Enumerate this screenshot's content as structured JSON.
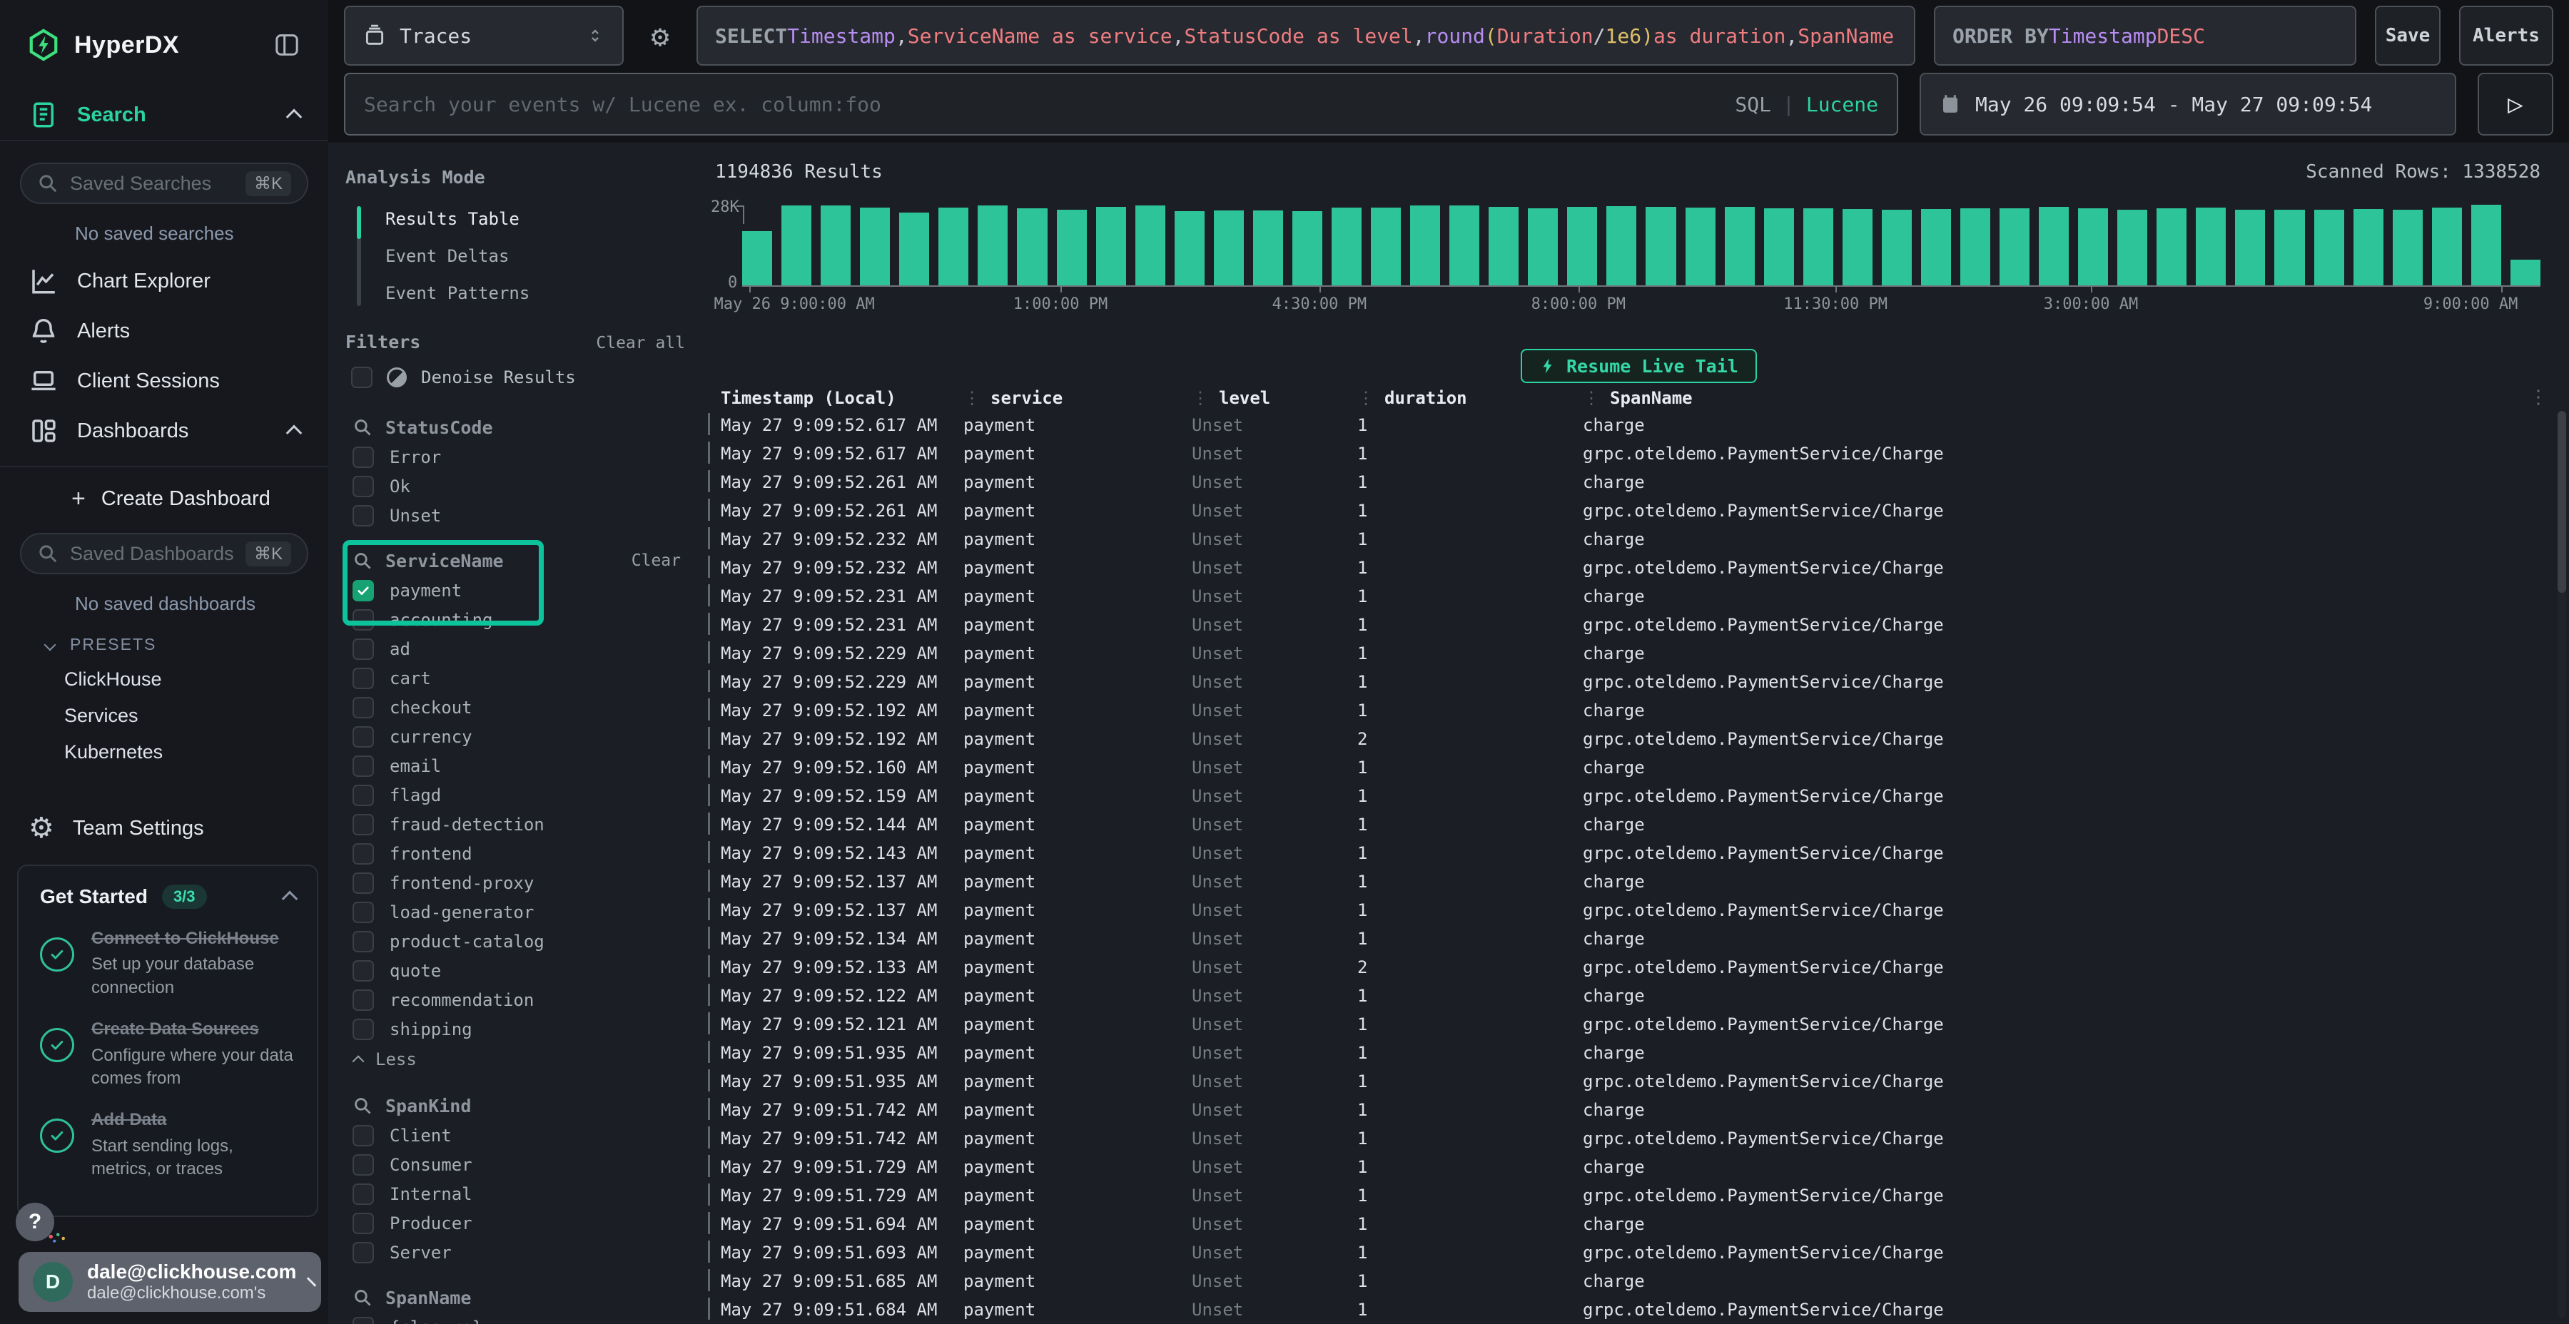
{
  "brand": {
    "name": "HyperDX"
  },
  "topbar": {
    "source": {
      "label": "Traces"
    },
    "sql_tokens": [
      [
        "kw",
        "SELECT "
      ],
      [
        "purple",
        "Timestamp"
      ],
      [
        "plain",
        ", "
      ],
      [
        "salmon",
        "ServiceName as service"
      ],
      [
        "plain",
        ", "
      ],
      [
        "salmon",
        "StatusCode as level"
      ],
      [
        "plain",
        ", "
      ],
      [
        "purple",
        "round"
      ],
      [
        "yellow",
        "("
      ],
      [
        "salmon",
        "Duration"
      ],
      [
        "plain",
        " / "
      ],
      [
        "yellow",
        "1e6"
      ],
      [
        "yellow",
        ")"
      ],
      [
        "salmon",
        " as duration"
      ],
      [
        "plain",
        ", "
      ],
      [
        "salmon",
        "SpanName"
      ]
    ],
    "order_tokens": [
      [
        "kw",
        "ORDER BY "
      ],
      [
        "purple",
        "Timestamp"
      ],
      [
        "salmon",
        " DESC"
      ]
    ],
    "save_label": "Save",
    "alerts_label": "Alerts",
    "search_placeholder": "Search your events w/ Lucene ex. column:foo",
    "sql_label": "SQL",
    "pipe": "|",
    "lucene_label": "Lucene",
    "date_range": "May 26 09:09:54 - May 27 09:09:54",
    "run_glyph": "▷"
  },
  "sidebar": {
    "search_nav": "Search",
    "saved_searches_placeholder": "Saved Searches",
    "shortcut": "⌘K",
    "no_saved_searches": "No saved searches",
    "nav": [
      {
        "icon": "chart",
        "label": "Chart Explorer"
      },
      {
        "icon": "bell",
        "label": "Alerts"
      },
      {
        "icon": "laptop",
        "label": "Client Sessions"
      },
      {
        "icon": "grid",
        "label": "Dashboards",
        "chevron": "up"
      }
    ],
    "create_dashboard": "Create Dashboard",
    "saved_dashboards_placeholder": "Saved Dashboards",
    "no_saved_dashboards": "No saved dashboards",
    "presets_label": "PRESETS",
    "presets": [
      "ClickHouse",
      "Services",
      "Kubernetes"
    ],
    "team_settings": "Team Settings",
    "get_started": {
      "title": "Get Started",
      "badge": "3/3",
      "steps": [
        {
          "title": "Connect to ClickHouse",
          "desc": "Set up your database connection"
        },
        {
          "title": "Create Data Sources",
          "desc": "Configure where your data comes from"
        },
        {
          "title": "Add Data",
          "desc": "Start sending logs, metrics, or traces"
        }
      ]
    },
    "help_label": "?",
    "user": {
      "initial": "D",
      "email": "dale@clickhouse.com",
      "sub": "dale@clickhouse.com's"
    }
  },
  "analysis": {
    "title": "Analysis Mode",
    "modes": [
      "Results Table",
      "Event Deltas",
      "Event Patterns"
    ],
    "active_index": 0
  },
  "filters": {
    "title": "Filters",
    "clear_all": "Clear all",
    "denoise": "Denoise Results",
    "less_label": "Less",
    "groups": [
      {
        "name": "StatusCode",
        "items": [
          {
            "label": "Error"
          },
          {
            "label": "Ok"
          },
          {
            "label": "Unset"
          }
        ]
      },
      {
        "name": "ServiceName",
        "highlighted": true,
        "clear_label": "Clear",
        "footer_less": true,
        "items": [
          {
            "label": "payment",
            "checked": true
          },
          {
            "label": "accounting"
          },
          {
            "label": "ad"
          },
          {
            "label": "cart"
          },
          {
            "label": "checkout"
          },
          {
            "label": "currency"
          },
          {
            "label": "email"
          },
          {
            "label": "flagd"
          },
          {
            "label": "fraud-detection"
          },
          {
            "label": "frontend"
          },
          {
            "label": "frontend-proxy"
          },
          {
            "label": "load-generator"
          },
          {
            "label": "product-catalog"
          },
          {
            "label": "quote"
          },
          {
            "label": "recommendation"
          },
          {
            "label": "shipping"
          }
        ]
      },
      {
        "name": "SpanKind",
        "items": [
          {
            "label": "Client"
          },
          {
            "label": "Consumer"
          },
          {
            "label": "Internal"
          },
          {
            "label": "Producer"
          },
          {
            "label": "Server"
          }
        ]
      },
      {
        "name": "SpanName",
        "items": [
          {
            "label": "{closure}"
          }
        ]
      }
    ]
  },
  "results": {
    "count": "1194836 Results",
    "scanned": "Scanned Rows: 1338528",
    "live_tail": "Resume Live Tail"
  },
  "chart_data": {
    "type": "bar",
    "title": "1194836 Results",
    "ylabel": "",
    "xlabel": "",
    "ylim": [
      0,
      28000
    ],
    "y_ticks": [
      "28K",
      "0"
    ],
    "bar_color": "#2cc498",
    "grid": false,
    "legend": "none",
    "values": [
      19000,
      28000,
      28000,
      27200,
      25600,
      27300,
      27900,
      26900,
      26600,
      27600,
      27900,
      26100,
      26300,
      26200,
      26100,
      27200,
      27300,
      28100,
      27900,
      27600,
      27000,
      27400,
      27700,
      27400,
      27200,
      27400,
      26900,
      26900,
      26800,
      26500,
      26700,
      26900,
      27000,
      27600,
      27000,
      26600,
      26900,
      27200,
      26600,
      26400,
      26500,
      26800,
      26600,
      27300,
      28200,
      9000
    ],
    "x_ticks": [
      {
        "label": "May 26 9:00:00 AM",
        "pos": 0.004
      },
      {
        "label": "1:00:00 PM",
        "pos": 0.177
      },
      {
        "label": "4:30:00 PM",
        "pos": 0.321
      },
      {
        "label": "8:00:00 PM",
        "pos": 0.465
      },
      {
        "label": "11:30:00 PM",
        "pos": 0.608
      },
      {
        "label": "3:00:00 AM",
        "pos": 0.75
      },
      {
        "label": "9:00:00 AM",
        "pos": 0.978
      }
    ]
  },
  "table": {
    "columns": [
      "Timestamp (Local)",
      "service",
      "level",
      "duration",
      "SpanName"
    ],
    "rows": [
      [
        "May 27 9:09:52.617 AM",
        "payment",
        "Unset",
        "1",
        "charge"
      ],
      [
        "May 27 9:09:52.617 AM",
        "payment",
        "Unset",
        "1",
        "grpc.oteldemo.PaymentService/Charge"
      ],
      [
        "May 27 9:09:52.261 AM",
        "payment",
        "Unset",
        "1",
        "charge"
      ],
      [
        "May 27 9:09:52.261 AM",
        "payment",
        "Unset",
        "1",
        "grpc.oteldemo.PaymentService/Charge"
      ],
      [
        "May 27 9:09:52.232 AM",
        "payment",
        "Unset",
        "1",
        "charge"
      ],
      [
        "May 27 9:09:52.232 AM",
        "payment",
        "Unset",
        "1",
        "grpc.oteldemo.PaymentService/Charge"
      ],
      [
        "May 27 9:09:52.231 AM",
        "payment",
        "Unset",
        "1",
        "charge"
      ],
      [
        "May 27 9:09:52.231 AM",
        "payment",
        "Unset",
        "1",
        "grpc.oteldemo.PaymentService/Charge"
      ],
      [
        "May 27 9:09:52.229 AM",
        "payment",
        "Unset",
        "1",
        "charge"
      ],
      [
        "May 27 9:09:52.229 AM",
        "payment",
        "Unset",
        "1",
        "grpc.oteldemo.PaymentService/Charge"
      ],
      [
        "May 27 9:09:52.192 AM",
        "payment",
        "Unset",
        "1",
        "charge"
      ],
      [
        "May 27 9:09:52.192 AM",
        "payment",
        "Unset",
        "2",
        "grpc.oteldemo.PaymentService/Charge"
      ],
      [
        "May 27 9:09:52.160 AM",
        "payment",
        "Unset",
        "1",
        "charge"
      ],
      [
        "May 27 9:09:52.159 AM",
        "payment",
        "Unset",
        "1",
        "grpc.oteldemo.PaymentService/Charge"
      ],
      [
        "May 27 9:09:52.144 AM",
        "payment",
        "Unset",
        "1",
        "charge"
      ],
      [
        "May 27 9:09:52.143 AM",
        "payment",
        "Unset",
        "1",
        "grpc.oteldemo.PaymentService/Charge"
      ],
      [
        "May 27 9:09:52.137 AM",
        "payment",
        "Unset",
        "1",
        "charge"
      ],
      [
        "May 27 9:09:52.137 AM",
        "payment",
        "Unset",
        "1",
        "grpc.oteldemo.PaymentService/Charge"
      ],
      [
        "May 27 9:09:52.134 AM",
        "payment",
        "Unset",
        "1",
        "charge"
      ],
      [
        "May 27 9:09:52.133 AM",
        "payment",
        "Unset",
        "2",
        "grpc.oteldemo.PaymentService/Charge"
      ],
      [
        "May 27 9:09:52.122 AM",
        "payment",
        "Unset",
        "1",
        "charge"
      ],
      [
        "May 27 9:09:52.121 AM",
        "payment",
        "Unset",
        "1",
        "grpc.oteldemo.PaymentService/Charge"
      ],
      [
        "May 27 9:09:51.935 AM",
        "payment",
        "Unset",
        "1",
        "charge"
      ],
      [
        "May 27 9:09:51.935 AM",
        "payment",
        "Unset",
        "1",
        "grpc.oteldemo.PaymentService/Charge"
      ],
      [
        "May 27 9:09:51.742 AM",
        "payment",
        "Unset",
        "1",
        "charge"
      ],
      [
        "May 27 9:09:51.742 AM",
        "payment",
        "Unset",
        "1",
        "grpc.oteldemo.PaymentService/Charge"
      ],
      [
        "May 27 9:09:51.729 AM",
        "payment",
        "Unset",
        "1",
        "charge"
      ],
      [
        "May 27 9:09:51.729 AM",
        "payment",
        "Unset",
        "1",
        "grpc.oteldemo.PaymentService/Charge"
      ],
      [
        "May 27 9:09:51.694 AM",
        "payment",
        "Unset",
        "1",
        "charge"
      ],
      [
        "May 27 9:09:51.693 AM",
        "payment",
        "Unset",
        "1",
        "grpc.oteldemo.PaymentService/Charge"
      ],
      [
        "May 27 9:09:51.685 AM",
        "payment",
        "Unset",
        "1",
        "charge"
      ],
      [
        "May 27 9:09:51.684 AM",
        "payment",
        "Unset",
        "1",
        "grpc.oteldemo.PaymentService/Charge"
      ]
    ]
  }
}
